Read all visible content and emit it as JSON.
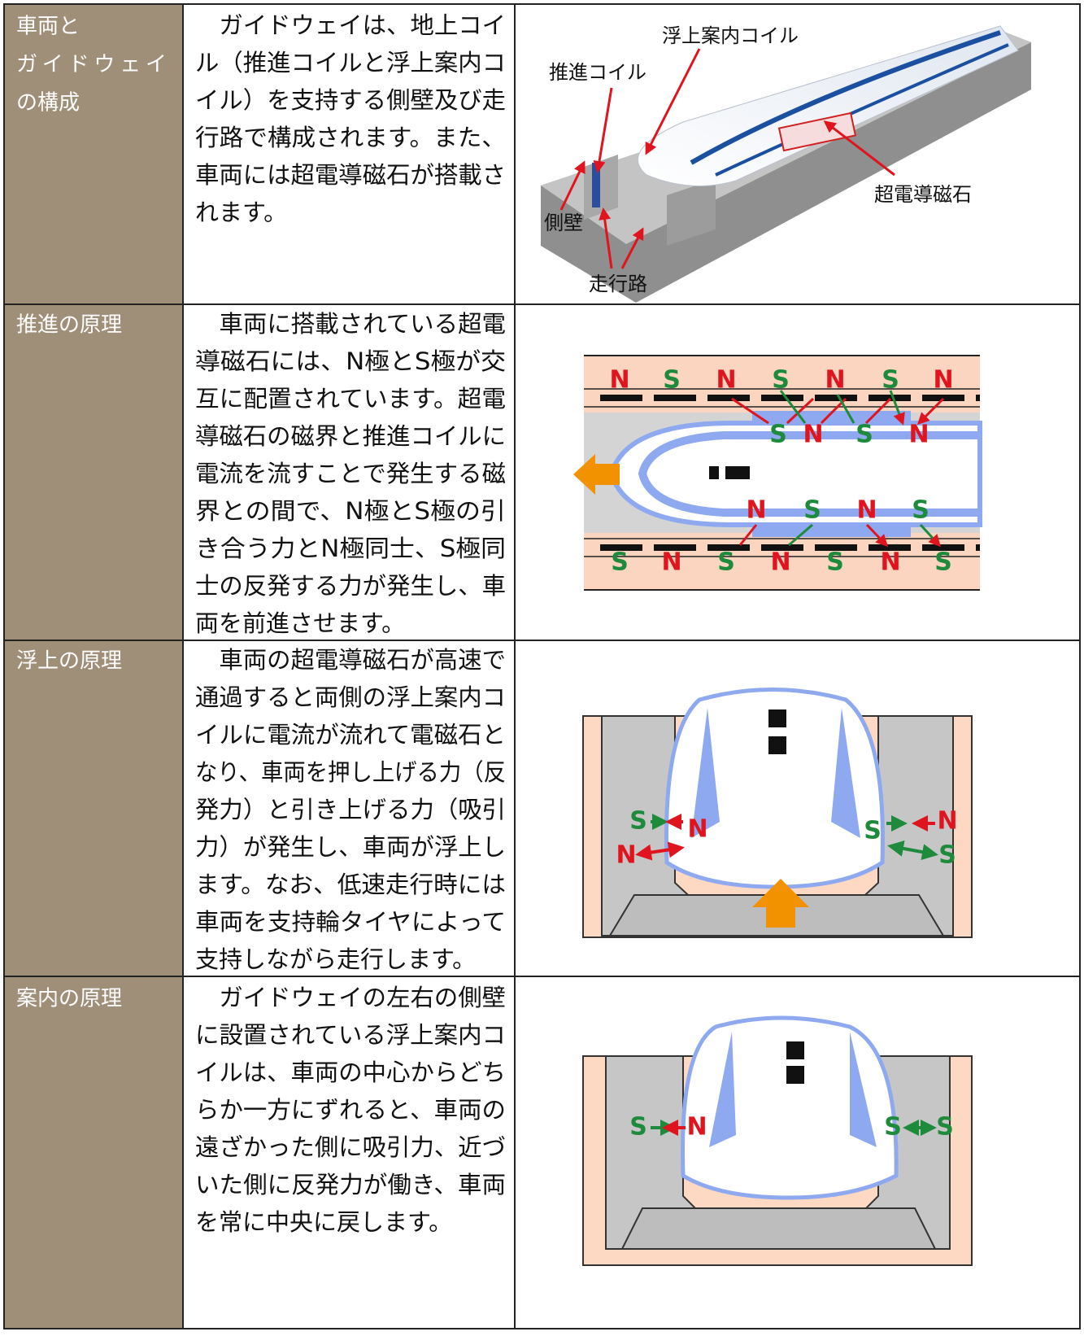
{
  "table": {
    "rows": [
      {
        "heading": [
          "車両と",
          "ガイドウェイ",
          "の構成"
        ],
        "body": [
          "　ガイドウェイは、地上コイ",
          "ル（推進コイルと浮上案内コ",
          "イル）を支持する側壁及び走",
          "行路で構成されます。また、",
          "車両には超電導磁石が搭載さ",
          "れます。"
        ],
        "figure": {
          "labels": [
            "浮上案内コイル",
            "推進コイル",
            "超電導磁石",
            "側壁",
            "走行路"
          ]
        }
      },
      {
        "heading": [
          "推進の原理"
        ],
        "body": [
          "　車両に搭載されている超電",
          "導磁石には、N極とS極が交",
          "互に配置されています。超電",
          "導磁石の磁界と推進コイルに",
          "電流を流すことで発生する磁",
          "界との間で、N極とS極の引",
          "き合う力とN極同士、S極同",
          "士の反発する力が発生し、車",
          "両を前進させます。"
        ],
        "figure": {
          "labels": [
            "N",
            "S",
            "N",
            "S",
            "N",
            "S",
            "N",
            "S",
            "N",
            "S",
            "N",
            "N",
            "S",
            "N",
            "S",
            "S",
            "N",
            "S",
            "N",
            "S",
            "N",
            "S"
          ]
        }
      },
      {
        "heading": [
          "浮上の原理"
        ],
        "body": [
          "　車両の超電導磁石が高速で",
          "通過すると両側の浮上案内コ",
          "イルに電流が流れて電磁石と",
          "なり、車両を押し上げる力（反",
          "発力）と引き上げる力（吸引",
          "力）が発生し、車両が浮上し",
          "ます。なお、低速走行時には",
          "車両を支持輪タイヤによって",
          "支持しながら走行します。"
        ],
        "figure": {
          "labels": [
            "S",
            "N",
            "N",
            "S",
            "N",
            "S"
          ]
        }
      },
      {
        "heading": [
          "案内の原理"
        ],
        "body": [
          "　ガイドウェイの左右の側壁",
          "に設置されている浮上案内コ",
          "イルは、車両の中心からどち",
          "らか一方にずれると、車両の",
          "遠ざかった側に吸引力、近づ",
          "いた側に反発力が働き、車両",
          "を常に中央に戻します。"
        ],
        "figure": {
          "labels": [
            "S",
            "N",
            "S",
            "S"
          ]
        }
      }
    ]
  }
}
